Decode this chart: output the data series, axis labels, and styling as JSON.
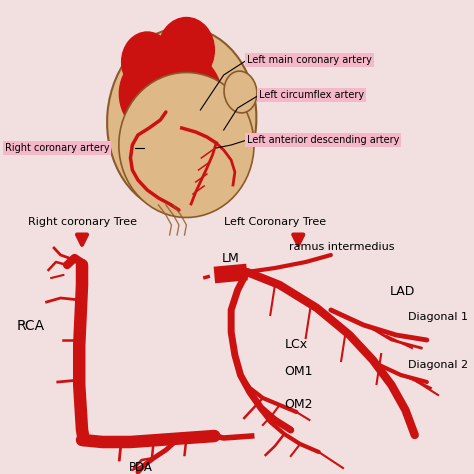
{
  "bg_color": "#f2e0e0",
  "artery_color": "#cc1111",
  "heart_fill": "#deb887",
  "heart_stroke": "#8b5a2b",
  "label_bg": "#f5b8c8",
  "title_labels": {
    "right_tree": "Right coronary Tree",
    "left_tree": "Left Coronary Tree"
  },
  "artery_labels_heart": {
    "right_coronary": "Right coronary artery",
    "left_main": "Left main coronary artery",
    "left_circumflex": "Left circumflex artery",
    "left_anterior": "Left anterior descending artery"
  },
  "artery_labels_diagram": {
    "RCA": "RCA",
    "LM": "LM",
    "ramus": "ramus intermedius",
    "LAD": "LAD",
    "LCx": "LCx",
    "OM1": "OM1",
    "OM2": "OM2",
    "PDA": "PDA",
    "Diagonal1": "Diagonal 1",
    "Diagonal2": "Diagonal 2"
  }
}
